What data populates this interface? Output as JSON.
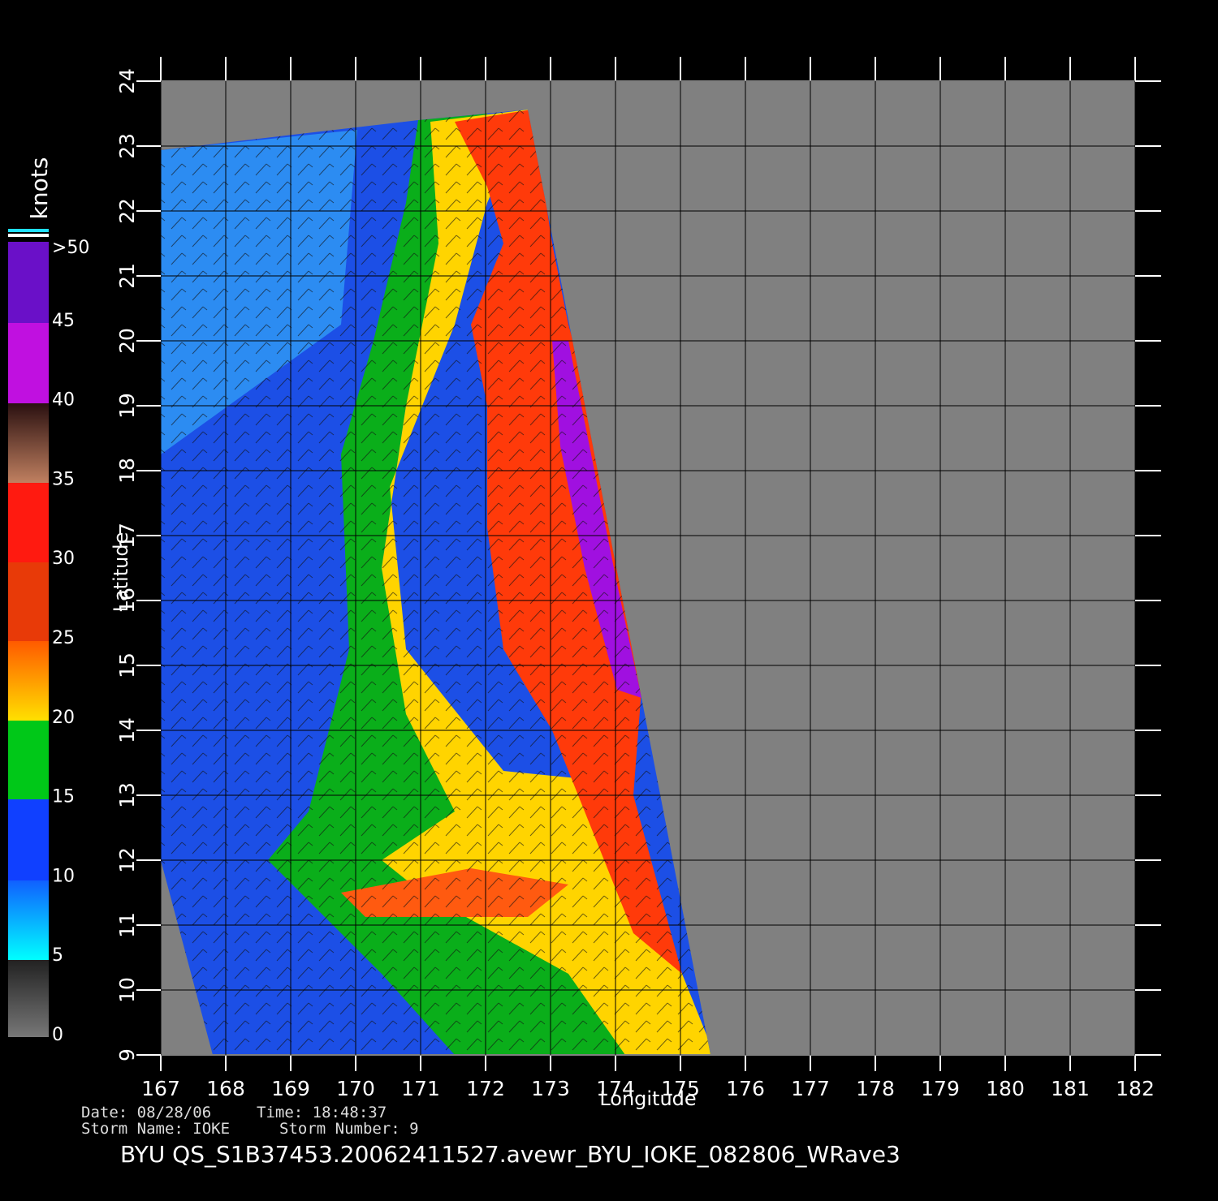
{
  "title": "BYU  QS_S1B37453.20062411527.avewr_BYU_IOKE_082806_WRave3",
  "info": {
    "date": "Date: 08/28/06",
    "time": "Time: 18:48:37",
    "storm_name": "Storm  Name: IOKE",
    "storm_number": "Storm  Number: 9"
  },
  "axes": {
    "xlabel": "Longitude",
    "ylabel": "Latitude",
    "xlim": [
      167,
      182
    ],
    "ylim": [
      9,
      24
    ],
    "xticks": [
      167,
      168,
      169,
      170,
      171,
      172,
      173,
      174,
      175,
      176,
      177,
      178,
      179,
      180,
      181,
      182
    ],
    "yticks": [
      9,
      10,
      11,
      12,
      13,
      14,
      15,
      16,
      17,
      18,
      19,
      20,
      21,
      22,
      23,
      24
    ],
    "grid": true
  },
  "colorbar": {
    "label": "knots",
    "range": [
      0,
      50
    ],
    "ticks": [
      0,
      5,
      10,
      15,
      20,
      25,
      30,
      35,
      40,
      45,
      {
        "value": 50,
        "label": ">50"
      }
    ]
  }
}
